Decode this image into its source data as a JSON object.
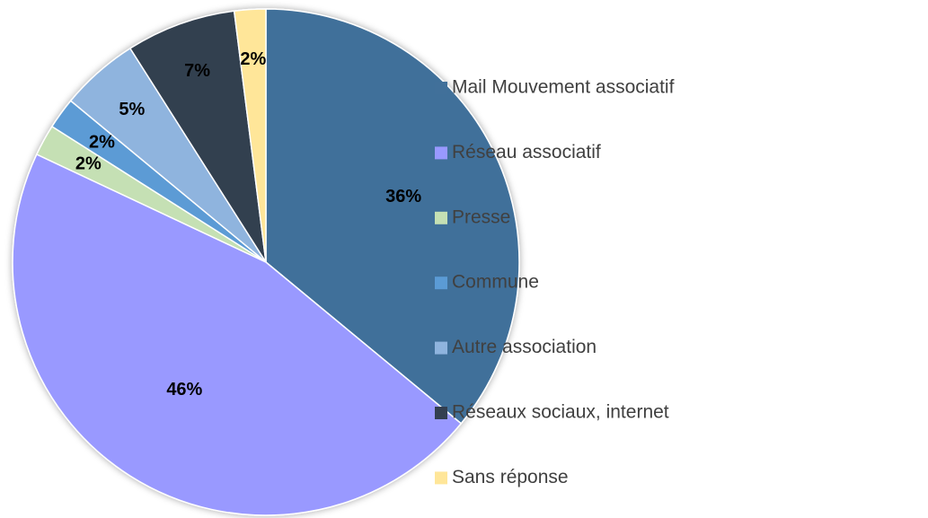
{
  "chart_data": {
    "type": "pie",
    "categories": [
      "Mail Mouvement associatif",
      "Réseau associatif",
      "Presse",
      "Commune",
      "Autre association",
      "Réseaux sociaux, internet",
      "Sans réponse"
    ],
    "values": [
      36,
      46,
      2,
      2,
      5,
      7,
      2
    ],
    "value_labels": [
      "36%",
      "46%",
      "2%",
      "2%",
      "5%",
      "7%",
      "2%"
    ],
    "colors": [
      "#41709a",
      "#9999ff",
      "#c5e0b4",
      "#5b9bd5",
      "#8fb4de",
      "#333f50",
      "#ffe699"
    ],
    "legend": "right"
  }
}
